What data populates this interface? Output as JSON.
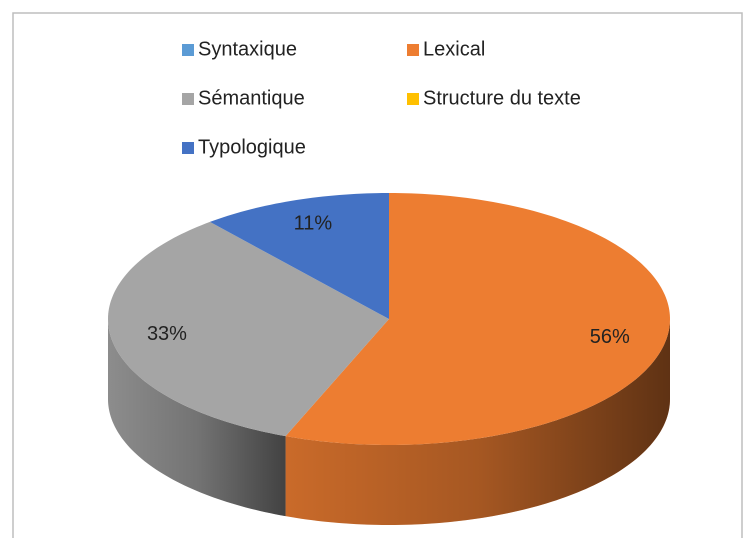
{
  "chart_data": {
    "type": "pie3d",
    "series": [
      {
        "name": "Syntaxique",
        "color": "#5B9BD5"
      },
      {
        "name": "Lexical",
        "color": "#ED7D31"
      },
      {
        "name": "Sémantique",
        "color": "#A5A5A5"
      },
      {
        "name": "Structure du texte",
        "color": "#FFC000"
      },
      {
        "name": "Typologique",
        "color": "#4472C4"
      }
    ],
    "values": [
      0,
      56,
      33,
      0,
      11
    ],
    "value_labels": [
      null,
      "56%",
      "33%",
      null,
      "11%"
    ],
    "legend": "top"
  }
}
